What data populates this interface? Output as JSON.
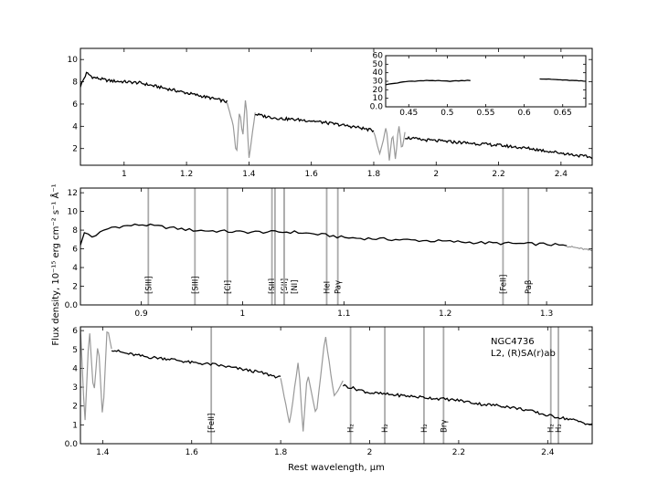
{
  "chart_data": {
    "type": "line",
    "annotation": [
      "NGC4736",
      "L2,  (R)SA(r)ab"
    ],
    "ylabel": "Flux density, 10⁻¹⁵ erg cm⁻² s⁻¹ Å⁻¹",
    "xlabel": "Rest wavelength, μm",
    "colors": {
      "good": "#000000",
      "masked": "#999999",
      "line_marker": "#aaaaaa"
    },
    "panels": [
      {
        "xlim": [
          0.86,
          2.5
        ],
        "ylim": [
          0.5,
          11
        ],
        "xticks": [
          1.0,
          1.2,
          1.4,
          1.6,
          1.8,
          2.0,
          2.2,
          2.4
        ],
        "yticks": [
          2,
          4,
          6,
          8,
          10
        ],
        "series": [
          {
            "style": "good",
            "x": [
              0.86,
              0.88,
              0.9,
              0.95,
              1.0,
              1.05,
              1.1,
              1.15,
              1.2,
              1.25,
              1.3,
              1.33
            ],
            "y": [
              7.6,
              8.8,
              8.4,
              8.1,
              8.0,
              7.9,
              7.6,
              7.3,
              7.0,
              6.7,
              6.4,
              6.2
            ]
          },
          {
            "style": "masked",
            "x": [
              1.33,
              1.35,
              1.36,
              1.37,
              1.38,
              1.39,
              1.4,
              1.42
            ],
            "y": [
              6.2,
              4.0,
              1.3,
              5.5,
              3.0,
              6.8,
              1.0,
              5.3
            ]
          },
          {
            "style": "good",
            "x": [
              1.42,
              1.45,
              1.5,
              1.55,
              1.6,
              1.65,
              1.7,
              1.75,
              1.8
            ],
            "y": [
              5.1,
              4.9,
              4.7,
              4.6,
              4.5,
              4.3,
              4.1,
              3.9,
              3.6
            ]
          },
          {
            "style": "masked",
            "x": [
              1.8,
              1.82,
              1.84,
              1.85,
              1.86,
              1.87,
              1.88,
              1.89,
              1.9
            ],
            "y": [
              3.5,
              1.5,
              4.0,
              1.0,
              3.5,
              0.9,
              4.2,
              1.8,
              3.4
            ]
          },
          {
            "style": "good",
            "x": [
              1.9,
              1.95,
              2.0,
              2.05,
              2.1,
              2.2,
              2.3,
              2.4,
              2.5
            ],
            "y": [
              3.0,
              2.8,
              2.7,
              2.6,
              2.5,
              2.3,
              2.0,
              1.6,
              1.2
            ]
          }
        ],
        "inset": {
          "xlim": [
            0.42,
            0.68
          ],
          "ylim": [
            0,
            60
          ],
          "xticks": [
            0.45,
            0.5,
            0.55,
            0.6,
            0.65
          ],
          "yticks": [
            0,
            10,
            20,
            30,
            40,
            50,
            60
          ],
          "series": [
            {
              "style": "good",
              "x": [
                0.42,
                0.45,
                0.48,
                0.5,
                0.53
              ],
              "y": [
                26,
                30,
                31,
                30,
                31
              ]
            },
            {
              "style": "good",
              "x": [
                0.62,
                0.64,
                0.66,
                0.68
              ],
              "y": [
                33,
                32,
                31,
                30
              ]
            }
          ]
        }
      },
      {
        "xlim": [
          0.84,
          1.345
        ],
        "ylim": [
          0,
          12.5
        ],
        "xticks": [
          0.9,
          1.0,
          1.1,
          1.2,
          1.3
        ],
        "yticks": [
          0,
          2,
          4,
          6,
          8,
          10,
          12
        ],
        "series": [
          {
            "style": "good",
            "x": [
              0.84,
              0.845,
              0.85,
              0.87,
              0.9,
              0.95,
              1.0,
              1.05,
              1.08,
              1.1,
              1.15,
              1.2,
              1.25,
              1.3,
              1.32
            ],
            "y": [
              6.5,
              8.0,
              7.2,
              8.3,
              8.6,
              8.0,
              7.8,
              7.8,
              7.5,
              7.2,
              7.0,
              6.8,
              6.6,
              6.5,
              6.3
            ]
          },
          {
            "style": "masked",
            "x": [
              1.32,
              1.345
            ],
            "y": [
              6.3,
              5.8
            ]
          }
        ],
        "lines": [
          {
            "x": 0.907,
            "label": "[SIII]"
          },
          {
            "x": 0.953,
            "label": "[SIII]"
          },
          {
            "x": 0.985,
            "label": "[CI]"
          },
          {
            "x": 1.029,
            "label": "[SII]"
          },
          {
            "x": 1.032,
            "label": ""
          },
          {
            "x": 1.041,
            "label": "[SII]"
          },
          {
            "x": 1.041,
            "label": "[NI]"
          },
          {
            "x": 1.083,
            "label": "HeI"
          },
          {
            "x": 1.094,
            "label": "Paγ"
          },
          {
            "x": 1.257,
            "label": "[FeII]"
          },
          {
            "x": 1.282,
            "label": "Paβ"
          }
        ]
      },
      {
        "xlim": [
          1.35,
          2.5
        ],
        "ylim": [
          0,
          6.2
        ],
        "xticks": [
          1.4,
          1.6,
          1.8,
          2.0,
          2.2,
          2.4
        ],
        "yticks": [
          0,
          1,
          2,
          3,
          4,
          5,
          6
        ],
        "series": [
          {
            "style": "masked",
            "x": [
              1.35,
              1.36,
              1.37,
              1.38,
              1.39,
              1.4,
              1.41,
              1.42
            ],
            "y": [
              6.2,
              1.0,
              6.2,
              2.5,
              5.5,
              1.2,
              6.2,
              5.0
            ]
          },
          {
            "style": "good",
            "x": [
              1.42,
              1.45,
              1.5,
              1.55,
              1.6,
              1.65,
              1.7,
              1.75,
              1.8
            ],
            "y": [
              5.0,
              4.8,
              4.6,
              4.5,
              4.3,
              4.2,
              4.0,
              3.8,
              3.5
            ]
          },
          {
            "style": "masked",
            "x": [
              1.8,
              1.82,
              1.84,
              1.85,
              1.86,
              1.88,
              1.9,
              1.92,
              1.94
            ],
            "y": [
              3.5,
              1.0,
              4.5,
              0.5,
              3.8,
              1.5,
              5.8,
              2.5,
              3.3
            ]
          },
          {
            "style": "good",
            "x": [
              1.94,
              2.0,
              2.05,
              2.1,
              2.15,
              2.2,
              2.25,
              2.3,
              2.35,
              2.4,
              2.45,
              2.5
            ],
            "y": [
              3.1,
              2.7,
              2.6,
              2.5,
              2.4,
              2.3,
              2.1,
              2.0,
              1.8,
              1.5,
              1.3,
              1.0
            ]
          }
        ],
        "lines": [
          {
            "x": 1.644,
            "label": "[FeII]"
          },
          {
            "x": 1.957,
            "label": "H₂"
          },
          {
            "x": 2.034,
            "label": "H₂"
          },
          {
            "x": 2.122,
            "label": "H₂"
          },
          {
            "x": 2.166,
            "label": "Brγ"
          },
          {
            "x": 2.407,
            "label": "H₂"
          },
          {
            "x": 2.424,
            "label": "H₂"
          }
        ]
      }
    ]
  }
}
